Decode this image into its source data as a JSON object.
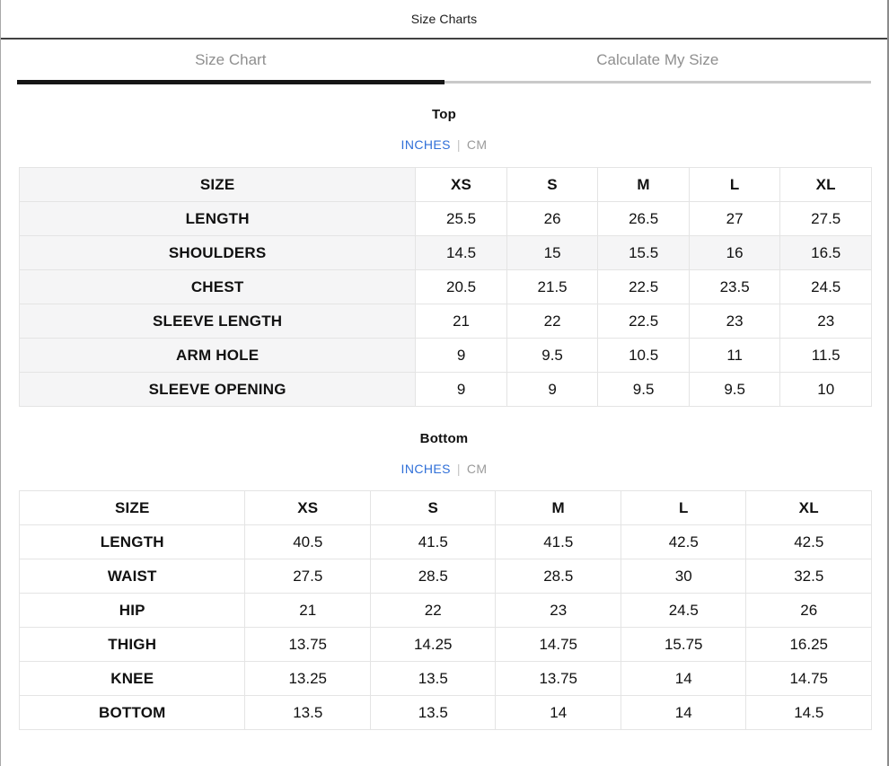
{
  "modal": {
    "title": "Size Charts",
    "close_glyph": "✕"
  },
  "tabs": [
    {
      "label": "Size Chart",
      "active": true
    },
    {
      "label": "Calculate My Size",
      "active": false
    }
  ],
  "units": {
    "primary": "INCHES",
    "separator": "|",
    "secondary": "CM",
    "selected": "INCHES"
  },
  "colors": {
    "accent_blue": "#2f6fd8",
    "unit_inactive": "#9b9b9b",
    "tab_text": "#8f8f8f",
    "tab_underline_active": "#151515",
    "tab_underline_inactive": "#c9c9c9",
    "header_divider": "#414141",
    "table_border": "#e4e4e4",
    "label_col_bg": "#f5f5f6",
    "highlight_row_bg": "#f5f5f6"
  },
  "chart_data": [
    {
      "type": "table",
      "title": "Top",
      "unit": "INCHES",
      "header": [
        "SIZE",
        "XS",
        "S",
        "M",
        "L",
        "XL"
      ],
      "rows": [
        {
          "label": "LENGTH",
          "values": [
            "25.5",
            "26",
            "26.5",
            "27",
            "27.5"
          ],
          "highlighted": false
        },
        {
          "label": "SHOULDERS",
          "values": [
            "14.5",
            "15",
            "15.5",
            "16",
            "16.5"
          ],
          "highlighted": true
        },
        {
          "label": "CHEST",
          "values": [
            "20.5",
            "21.5",
            "22.5",
            "23.5",
            "24.5"
          ],
          "highlighted": false
        },
        {
          "label": "SLEEVE LENGTH",
          "values": [
            "21",
            "22",
            "22.5",
            "23",
            "23"
          ],
          "highlighted": false
        },
        {
          "label": "ARM HOLE",
          "values": [
            "9",
            "9.5",
            "10.5",
            "11",
            "11.5"
          ],
          "highlighted": false
        },
        {
          "label": "SLEEVE OPENING",
          "values": [
            "9",
            "9",
            "9.5",
            "9.5",
            "10"
          ],
          "highlighted": false
        }
      ]
    },
    {
      "type": "table",
      "title": "Bottom",
      "unit": "INCHES",
      "header": [
        "SIZE",
        "XS",
        "S",
        "M",
        "L",
        "XL"
      ],
      "rows": [
        {
          "label": "LENGTH",
          "values": [
            "40.5",
            "41.5",
            "41.5",
            "42.5",
            "42.5"
          ],
          "highlighted": false
        },
        {
          "label": "WAIST",
          "values": [
            "27.5",
            "28.5",
            "28.5",
            "30",
            "32.5"
          ],
          "highlighted": false
        },
        {
          "label": "HIP",
          "values": [
            "21",
            "22",
            "23",
            "24.5",
            "26"
          ],
          "highlighted": false
        },
        {
          "label": "THIGH",
          "values": [
            "13.75",
            "14.25",
            "14.75",
            "15.75",
            "16.25"
          ],
          "highlighted": false
        },
        {
          "label": "KNEE",
          "values": [
            "13.25",
            "13.5",
            "13.75",
            "14",
            "14.75"
          ],
          "highlighted": false
        },
        {
          "label": "BOTTOM",
          "values": [
            "13.5",
            "13.5",
            "14",
            "14",
            "14.5"
          ],
          "highlighted": false
        }
      ]
    }
  ]
}
